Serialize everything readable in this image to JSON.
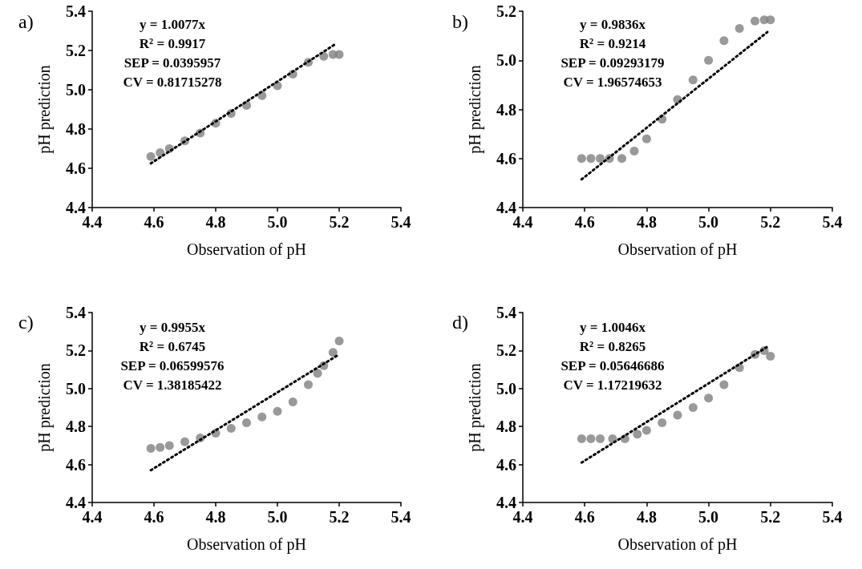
{
  "chart_data": [
    {
      "type": "scatter",
      "title": "a)",
      "xlabel": "Observation of pH",
      "ylabel": "pH prediction",
      "xlim": [
        4.4,
        5.4
      ],
      "xticks": [
        {
          "value": 4.4,
          "label": "4.4"
        },
        {
          "value": 4.6,
          "label": "4.6"
        },
        {
          "value": 4.8,
          "label": "4.8"
        },
        {
          "value": 5.0,
          "label": "5.0"
        },
        {
          "value": 5.2,
          "label": "5.2"
        },
        {
          "value": 5.4,
          "label": "5.4"
        }
      ],
      "ylim": [
        4.4,
        5.4
      ],
      "yticks": [
        {
          "value": 4.4,
          "label": "4.4"
        },
        {
          "value": 4.6,
          "label": "4.6"
        },
        {
          "value": 4.8,
          "label": "4.8"
        },
        {
          "value": 5.0,
          "label": "5.0"
        },
        {
          "value": 5.2,
          "label": "5.2"
        },
        {
          "value": 5.4,
          "label": "5.4"
        }
      ],
      "grid": false,
      "marker": "circle",
      "annotations": [
        "y = 1.0077x",
        "R² = 0.9917",
        "SEP = 0.0395957",
        "CV = 0.81715278"
      ],
      "series": [
        {
          "color": "#808080",
          "x": [
            4.59,
            4.62,
            4.65,
            4.7,
            4.75,
            4.8,
            4.85,
            4.9,
            4.95,
            5.0,
            5.05,
            5.1,
            5.15,
            5.18,
            5.2
          ],
          "values": [
            4.66,
            4.68,
            4.7,
            4.74,
            4.78,
            4.83,
            4.88,
            4.92,
            4.97,
            5.02,
            5.08,
            5.14,
            5.17,
            5.18,
            5.18
          ]
        },
        {
          "type": "line",
          "color": "#000000",
          "marker": "none",
          "line_style": "dotted",
          "x": [
            4.59,
            5.19
          ],
          "values": [
            4.625,
            5.235
          ]
        }
      ]
    },
    {
      "type": "scatter",
      "title": "b)",
      "xlabel": "Observation of pH",
      "ylabel": "pH prediction",
      "xlim": [
        4.4,
        5.4
      ],
      "xticks": [
        {
          "value": 4.4,
          "label": "4.4"
        },
        {
          "value": 4.6,
          "label": "4.6"
        },
        {
          "value": 4.8,
          "label": "4.8"
        },
        {
          "value": 5.0,
          "label": "5.0"
        },
        {
          "value": 5.2,
          "label": "5.2"
        },
        {
          "value": 5.4,
          "label": "5.4"
        }
      ],
      "ylim": [
        4.4,
        5.2
      ],
      "yticks": [
        {
          "value": 4.4,
          "label": "4.4"
        },
        {
          "value": 4.6,
          "label": "4.6"
        },
        {
          "value": 4.8,
          "label": "4.8"
        },
        {
          "value": 5.0,
          "label": "5.0"
        },
        {
          "value": 5.2,
          "label": "5.2"
        }
      ],
      "grid": false,
      "marker": "circle",
      "annotations": [
        "y = 0.9836x",
        "R² = 0.9214",
        "SEP = 0.09293179",
        "CV = 1.96574653"
      ],
      "series": [
        {
          "color": "#808080",
          "x": [
            4.59,
            4.62,
            4.65,
            4.68,
            4.72,
            4.76,
            4.8,
            4.85,
            4.9,
            4.95,
            5.0,
            5.05,
            5.1,
            5.15,
            5.18,
            5.2
          ],
          "values": [
            4.6,
            4.6,
            4.6,
            4.6,
            4.6,
            4.63,
            4.68,
            4.76,
            4.84,
            4.92,
            5.0,
            5.08,
            5.13,
            5.16,
            5.165,
            5.165
          ]
        },
        {
          "type": "line",
          "color": "#000000",
          "marker": "none",
          "line_style": "dotted",
          "x": [
            4.59,
            5.19
          ],
          "values": [
            4.515,
            5.115
          ]
        }
      ]
    },
    {
      "type": "scatter",
      "title": "c)",
      "xlabel": "Observation of pH",
      "ylabel": "pH prediction",
      "xlim": [
        4.4,
        5.4
      ],
      "xticks": [
        {
          "value": 4.4,
          "label": "4.4"
        },
        {
          "value": 4.6,
          "label": "4.6"
        },
        {
          "value": 4.8,
          "label": "4.8"
        },
        {
          "value": 5.0,
          "label": "5.0"
        },
        {
          "value": 5.2,
          "label": "5.2"
        },
        {
          "value": 5.4,
          "label": "5.4"
        }
      ],
      "ylim": [
        4.4,
        5.4
      ],
      "yticks": [
        {
          "value": 4.4,
          "label": "4.4"
        },
        {
          "value": 4.6,
          "label": "4.6"
        },
        {
          "value": 4.8,
          "label": "4.8"
        },
        {
          "value": 5.0,
          "label": "5.0"
        },
        {
          "value": 5.2,
          "label": "5.2"
        },
        {
          "value": 5.4,
          "label": "5.4"
        }
      ],
      "grid": false,
      "marker": "circle",
      "annotations": [
        "y = 0.9955x",
        "R² = 0.6745",
        "SEP = 0.06599576",
        "CV = 1.38185422"
      ],
      "series": [
        {
          "color": "#808080",
          "x": [
            4.59,
            4.62,
            4.65,
            4.7,
            4.75,
            4.8,
            4.85,
            4.9,
            4.95,
            5.0,
            5.05,
            5.1,
            5.13,
            5.15,
            5.18,
            5.2
          ],
          "values": [
            4.685,
            4.69,
            4.7,
            4.72,
            4.74,
            4.765,
            4.79,
            4.82,
            4.85,
            4.88,
            4.93,
            5.02,
            5.08,
            5.12,
            5.19,
            5.25
          ]
        },
        {
          "type": "line",
          "color": "#000000",
          "marker": "none",
          "line_style": "dotted",
          "x": [
            4.59,
            5.2
          ],
          "values": [
            4.57,
            5.18
          ]
        }
      ]
    },
    {
      "type": "scatter",
      "title": "d)",
      "xlabel": "Observation of pH",
      "ylabel": "pH prediction",
      "xlim": [
        4.4,
        5.4
      ],
      "xticks": [
        {
          "value": 4.4,
          "label": "4.4"
        },
        {
          "value": 4.6,
          "label": "4.6"
        },
        {
          "value": 4.8,
          "label": "4.8"
        },
        {
          "value": 5.0,
          "label": "5.0"
        },
        {
          "value": 5.2,
          "label": "5.2"
        },
        {
          "value": 5.4,
          "label": "5.4"
        }
      ],
      "ylim": [
        4.4,
        5.4
      ],
      "yticks": [
        {
          "value": 4.4,
          "label": "4.4"
        },
        {
          "value": 4.6,
          "label": "4.6"
        },
        {
          "value": 4.8,
          "label": "4.8"
        },
        {
          "value": 5.0,
          "label": "5.0"
        },
        {
          "value": 5.2,
          "label": "5.2"
        },
        {
          "value": 5.4,
          "label": "5.4"
        }
      ],
      "grid": false,
      "marker": "circle",
      "annotations": [
        "y = 1.0046x",
        "R² = 0.8265",
        "SEP = 0.05646686",
        "CV = 1.17219632"
      ],
      "series": [
        {
          "color": "#808080",
          "x": [
            4.59,
            4.62,
            4.65,
            4.69,
            4.73,
            4.77,
            4.8,
            4.85,
            4.9,
            4.95,
            5.0,
            5.05,
            5.1,
            5.15,
            5.18,
            5.2
          ],
          "values": [
            4.735,
            4.735,
            4.735,
            4.735,
            4.735,
            4.76,
            4.78,
            4.82,
            4.86,
            4.9,
            4.95,
            5.02,
            5.11,
            5.18,
            5.2,
            5.17
          ]
        },
        {
          "type": "line",
          "color": "#000000",
          "marker": "none",
          "line_style": "dotted",
          "x": [
            4.59,
            5.19
          ],
          "values": [
            4.61,
            5.22
          ]
        }
      ]
    }
  ]
}
